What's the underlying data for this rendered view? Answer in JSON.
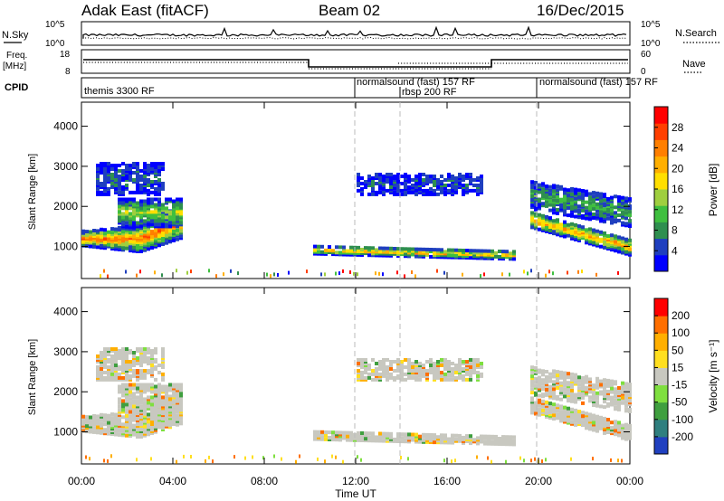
{
  "header": {
    "site": "Adak East (fitACF)",
    "beam": "Beam 02",
    "date": "16/Dec/2015"
  },
  "nsky_panel": {
    "left_label": "N.Sky",
    "left_ticks": [
      "10^5",
      "10^0"
    ],
    "right_label": "N.Search",
    "right_ticks": [
      "10^5",
      "10^0"
    ]
  },
  "freq_panel": {
    "left_label_line1": "Freq.",
    "left_label_line2": "[MHz]",
    "left_ticks": [
      "18",
      "8"
    ],
    "right_label": "Nave",
    "right_ticks": [
      "60",
      "0"
    ]
  },
  "cpid_panel": {
    "label": "CPID",
    "segments": [
      {
        "name": "themis 3300 RF",
        "start_hour": 0.0
      },
      {
        "name": "normalsound (fast) 157 RF",
        "start_hour": 12.0
      },
      {
        "name": "rbsp 200 RF",
        "start_hour": 14.0
      },
      {
        "name": "normalsound (fast) 157 RF",
        "start_hour": 20.0
      }
    ]
  },
  "power_panel": {
    "ylabel": "Slant Range [km]",
    "yticks": [
      "4000",
      "3000",
      "2000",
      "1000"
    ],
    "colorbar_label": "Power [dB]",
    "colorbar_ticks": [
      "28",
      "24",
      "20",
      "16",
      "12",
      "8",
      "4"
    ],
    "colors": [
      "#0000ff",
      "#1f3fbf",
      "#2f8f4f",
      "#3fbf3f",
      "#9fcf3f",
      "#ffdf00",
      "#ffaf00",
      "#ff7f00",
      "#ff3f00",
      "#ff0000"
    ]
  },
  "velocity_panel": {
    "ylabel": "Slant Range [km]",
    "yticks": [
      "4000",
      "3000",
      "2000",
      "1000"
    ],
    "colorbar_label": "Velocity [m s⁻¹]",
    "colorbar_ticks": [
      "200",
      "100",
      "50",
      "15",
      "-15",
      "-50",
      "-100",
      "-200"
    ],
    "colors": [
      "#2040c0",
      "#2f7f7f",
      "#3f9f3f",
      "#7fdf3f",
      "#c8c8c0",
      "#ffdf20",
      "#ffaf00",
      "#ff6f00",
      "#ff0000"
    ]
  },
  "x_axis": {
    "label": "Time UT",
    "ticks": [
      "00:00",
      "04:00",
      "08:00",
      "12:00",
      "16:00",
      "20:00",
      "00:00"
    ]
  },
  "chart_data": {
    "type": "heatmap",
    "x_range_hours": [
      0,
      24
    ],
    "y_range_km": [
      200,
      4600
    ],
    "power_regions": [
      {
        "t": [
          0.0,
          4.3
        ],
        "r": [
          800,
          2300
        ],
        "level": "high (12-28 dB), peak ~1100-1400 km"
      },
      {
        "t": [
          10.0,
          19.0
        ],
        "r": [
          700,
          1200
        ],
        "level": "high (16-24 dB), ~900 km"
      },
      {
        "t": [
          19.5,
          24.0
        ],
        "r": [
          800,
          2300
        ],
        "level": "high (12-28 dB), decending to ~1000 km"
      },
      {
        "t": [
          0.5,
          3.5
        ],
        "r": [
          2400,
          3300
        ],
        "level": "low (4-12 dB)"
      },
      {
        "t": [
          12.0,
          17.5
        ],
        "r": [
          2300,
          2800
        ],
        "level": "low (4-12 dB)"
      }
    ],
    "velocity_regions": [
      {
        "t": [
          0.0,
          4.3
        ],
        "r": [
          900,
          1600
        ],
        "level": "near zero (grey, -15 to 15 m/s)"
      },
      {
        "t": [
          10.0,
          19.0
        ],
        "r": [
          700,
          1100
        ],
        "level": "near zero with some -50 to 50 m/s"
      },
      {
        "t": [
          19.5,
          24.0
        ],
        "r": [
          800,
          2200
        ],
        "level": "near zero (grey)"
      }
    ]
  }
}
